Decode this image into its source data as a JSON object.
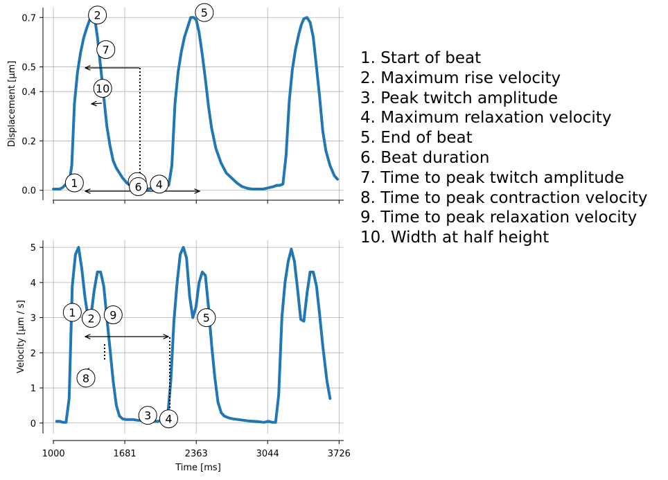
{
  "chart_data": [
    {
      "type": "line",
      "ylabel": "Displacement [µm]",
      "xlabel": "",
      "xlim": [
        900,
        3770
      ],
      "ylim": [
        -0.04,
        0.74
      ],
      "x_ticks": [
        1000,
        1681,
        2363,
        3044,
        3726
      ],
      "y_ticks": [
        0.0,
        0.2,
        0.4,
        0.5,
        0.7
      ],
      "y_tick_labels": [
        "0.0",
        "0.2",
        "0.4",
        "0.5",
        "0.7"
      ],
      "grid": true,
      "series": [
        {
          "color": "#1f77b4",
          "x": [
            1000,
            1030,
            1060,
            1090,
            1120,
            1150,
            1175,
            1200,
            1230,
            1260,
            1290,
            1320,
            1350,
            1380,
            1400,
            1420,
            1450,
            1480,
            1510,
            1540,
            1570,
            1600,
            1630,
            1660,
            1700,
            1750,
            1800,
            1850,
            1900,
            1950,
            2000,
            2050,
            2100,
            2130,
            2160,
            2190,
            2220,
            2250,
            2280,
            2310,
            2340,
            2363,
            2390,
            2420,
            2450,
            2480,
            2510,
            2550,
            2600,
            2650,
            2700,
            2750,
            2800,
            2850,
            2900,
            2950,
            3000,
            3050,
            3100,
            3130,
            3160,
            3190,
            3220,
            3250,
            3280,
            3310,
            3340,
            3365,
            3390,
            3420,
            3450,
            3480,
            3510,
            3540,
            3570,
            3600,
            3640,
            3680,
            3710
          ],
          "y": [
            0.005,
            0.005,
            0.005,
            0.012,
            0.025,
            0.03,
            0.1,
            0.35,
            0.48,
            0.56,
            0.62,
            0.66,
            0.695,
            0.7,
            0.68,
            0.62,
            0.5,
            0.38,
            0.26,
            0.18,
            0.12,
            0.09,
            0.07,
            0.05,
            0.03,
            0.015,
            0.008,
            0.005,
            0.005,
            0.01,
            0.015,
            0.015,
            0.02,
            0.1,
            0.35,
            0.48,
            0.56,
            0.62,
            0.66,
            0.7,
            0.7,
            0.69,
            0.64,
            0.55,
            0.45,
            0.34,
            0.25,
            0.17,
            0.11,
            0.07,
            0.05,
            0.03,
            0.015,
            0.008,
            0.005,
            0.005,
            0.005,
            0.01,
            0.015,
            0.02,
            0.02,
            0.025,
            0.14,
            0.36,
            0.49,
            0.57,
            0.63,
            0.67,
            0.695,
            0.7,
            0.68,
            0.62,
            0.5,
            0.38,
            0.24,
            0.16,
            0.1,
            0.06,
            0.045
          ]
        }
      ],
      "annotations": [
        {
          "label": "1",
          "x": 1200,
          "y": 0.03
        },
        {
          "label": "2",
          "x": 1420,
          "y": 0.71
        },
        {
          "label": "3",
          "x": 1800,
          "y": 0.035
        },
        {
          "label": "4",
          "x": 2010,
          "y": 0.025
        },
        {
          "label": "5",
          "x": 2440,
          "y": 0.72
        },
        {
          "label": "6",
          "x": 1810,
          "y": 0.015
        },
        {
          "label": "7",
          "x": 1500,
          "y": 0.57
        },
        {
          "label": "10",
          "x": 1470,
          "y": 0.413
        }
      ]
    },
    {
      "type": "line",
      "ylabel": "Velocity [µm / s]",
      "xlabel": "Time [ms]",
      "xlim": [
        900,
        3770
      ],
      "ylim": [
        -0.3,
        5.2
      ],
      "x_ticks": [
        1000,
        1681,
        2363,
        3044,
        3726
      ],
      "x_tick_labels": [
        "1000",
        "1681",
        "2363",
        "3044",
        "3726"
      ],
      "y_ticks": [
        0,
        1,
        2,
        3,
        4,
        5
      ],
      "y_tick_labels": [
        "0",
        "1",
        "2",
        "3",
        "4",
        "5"
      ],
      "grid": true,
      "series": [
        {
          "color": "#1f77b4",
          "x": [
            1030,
            1060,
            1090,
            1120,
            1150,
            1180,
            1210,
            1240,
            1270,
            1300,
            1330,
            1360,
            1390,
            1420,
            1450,
            1480,
            1510,
            1540,
            1570,
            1600,
            1630,
            1660,
            1690,
            1720,
            1760,
            1800,
            1850,
            1900,
            1950,
            2000,
            2050,
            2090,
            2120,
            2150,
            2180,
            2210,
            2240,
            2270,
            2300,
            2330,
            2360,
            2390,
            2420,
            2450,
            2480,
            2510,
            2540,
            2570,
            2600,
            2630,
            2670,
            2710,
            2760,
            2810,
            2860,
            2910,
            2960,
            3010,
            3050,
            3090,
            3120,
            3150,
            3180,
            3210,
            3240,
            3270,
            3300,
            3330,
            3360,
            3390,
            3420,
            3450,
            3480,
            3510,
            3540,
            3570,
            3610,
            3640
          ],
          "y": [
            0.05,
            0.05,
            0.02,
            0.02,
            0.7,
            3.9,
            4.8,
            5.0,
            4.4,
            3.6,
            3.0,
            3.1,
            3.8,
            4.3,
            4.3,
            3.9,
            3.0,
            2.1,
            1.2,
            0.5,
            0.2,
            0.12,
            0.1,
            0.1,
            0.1,
            0.08,
            0.07,
            0.06,
            0.05,
            0.05,
            0.1,
            0.2,
            1.2,
            2.9,
            4.0,
            4.8,
            5.0,
            4.7,
            3.6,
            3.0,
            3.3,
            4.0,
            4.3,
            4.2,
            3.3,
            2.2,
            1.3,
            0.6,
            0.3,
            0.2,
            0.15,
            0.12,
            0.1,
            0.08,
            0.06,
            0.05,
            0.04,
            0.02,
            0.05,
            0.02,
            0.02,
            0.8,
            3.0,
            4.0,
            4.6,
            4.95,
            4.6,
            3.8,
            2.95,
            2.9,
            3.7,
            4.3,
            4.3,
            3.9,
            3.1,
            2.2,
            1.2,
            0.7
          ]
        }
      ],
      "annotations": [
        {
          "label": "1",
          "x": 1180,
          "y": 3.15
        },
        {
          "label": "2",
          "x": 1360,
          "y": 2.98
        },
        {
          "label": "3",
          "x": 1900,
          "y": 0.22
        },
        {
          "label": "4",
          "x": 2100,
          "y": 0.12
        },
        {
          "label": "5",
          "x": 2460,
          "y": 3.0
        },
        {
          "label": "8",
          "x": 1310,
          "y": 1.28
        },
        {
          "label": "9",
          "x": 1570,
          "y": 3.08
        }
      ]
    }
  ],
  "legend": {
    "items": [
      "1. Start of beat",
      "2. Maximum rise velocity",
      "3. Peak twitch amplitude",
      "4. Maximum relaxation velocity",
      "5. End of beat",
      "6. Beat duration",
      "7. Time to peak twitch amplitude",
      "8. Time to peak contraction velocity",
      "9. Time to peak relaxation velocity",
      "10. Width at half height"
    ]
  }
}
